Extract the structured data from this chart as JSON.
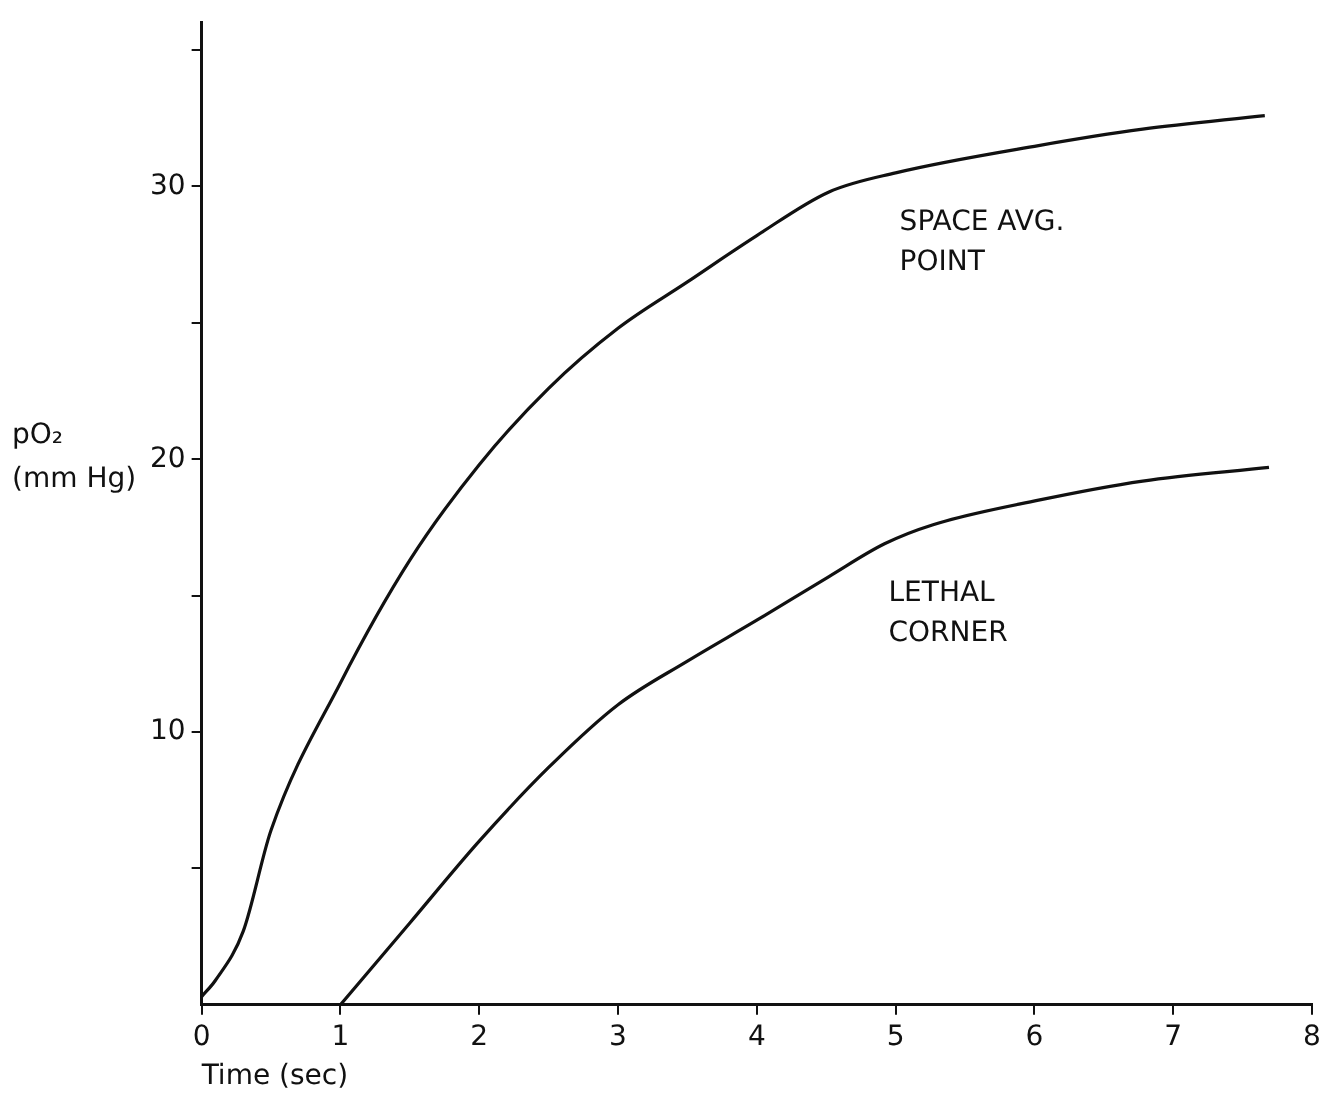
{
  "chart_data": {
    "type": "line",
    "xlabel": "Time (sec)",
    "ylabel": "pO₂ (mm Hg)",
    "xlim": [
      0,
      8
    ],
    "ylim": [
      0,
      36
    ],
    "xticks": [
      0,
      1,
      2,
      3,
      4,
      5,
      6,
      7,
      8
    ],
    "yticks": [
      {
        "value": 5,
        "label": null
      },
      10,
      {
        "value": 15,
        "label": null
      },
      20,
      {
        "value": 25,
        "label": null
      },
      30,
      {
        "value": 35,
        "label": null
      }
    ],
    "grid": false,
    "legend": false,
    "marker": "none",
    "line_style": "solid",
    "series": [
      {
        "name": "SPACE AVG. POINT",
        "color": "#111111",
        "x": [
          0,
          0.1,
          0.3,
          0.5,
          1,
          1.5,
          2,
          2.5,
          3,
          3.5,
          4,
          4.52,
          5,
          6.03,
          6.78,
          7.66
        ],
        "values": [
          0.3,
          0.9,
          2.7,
          6.4,
          11.8,
          16.3,
          19.8,
          22.6,
          24.8,
          26.5,
          28.2,
          29.8,
          30.5,
          31.5,
          32.1,
          32.6
        ]
      },
      {
        "name": "LETHAL CORNER",
        "color": "#111111",
        "x": [
          1,
          1.5,
          2,
          2.5,
          3,
          3.5,
          4,
          4.52,
          4.92,
          5.27,
          6.03,
          6.78,
          7.69
        ],
        "values": [
          0,
          3.0,
          6.0,
          8.7,
          11.0,
          12.6,
          14.1,
          15.7,
          16.9,
          17.6,
          18.5,
          19.2,
          19.7
        ]
      }
    ]
  }
}
